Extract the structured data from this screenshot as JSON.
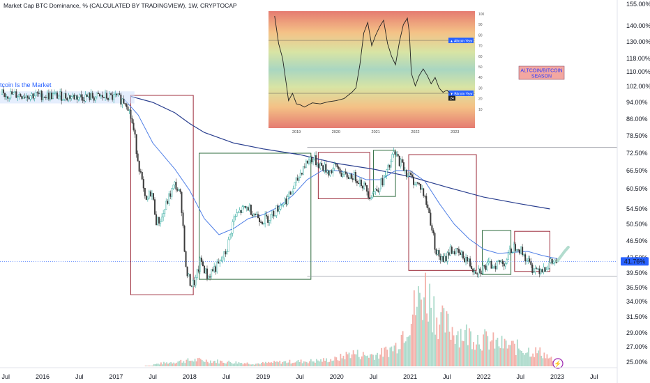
{
  "title": "Market Cap BTC Dominance, % (CALCULATED BY TRADINGVIEW), 1W, CRYPTOCAP",
  "chart_data": {
    "type": "candlestick",
    "series_name": "Market Cap BTC Dominance, %",
    "interval": "1W",
    "price_ticks": [
      155.0,
      140.0,
      130.0,
      118.0,
      110.0,
      102.0,
      94.0,
      86.0,
      78.5,
      72.5,
      66.5,
      60.5,
      54.5,
      50.5,
      46.5,
      42.5,
      39.5,
      36.5,
      34.0,
      31.5,
      29.0,
      27.0,
      25.0
    ],
    "price_tick_labels": [
      "155.00%",
      "140.00%",
      "130.00%",
      "118.00%",
      "110.00%",
      "102.00%",
      "94.00%",
      "86.00%",
      "78.50%",
      "72.50%",
      "66.50%",
      "60.50%",
      "54.50%",
      "50.50%",
      "46.50%",
      "42.50%",
      "39.50%",
      "36.50%",
      "34.00%",
      "31.50%",
      "29.00%",
      "27.00%",
      "25.00%"
    ],
    "time_labels": [
      "Jul",
      "2016",
      "Jul",
      "2017",
      "Jul",
      "2018",
      "Jul",
      "2019",
      "Jul",
      "2020",
      "Jul",
      "2021",
      "Jul",
      "2022",
      "Jul",
      "2023",
      "Jul"
    ],
    "current_value_label": "41.76%",
    "current_value": 41.76,
    "overlay_text": "itcoin Is the Market",
    "season_label": "ALTCOIN/BITCOIN SEASON",
    "horizontal_levels": [
      74.5,
      38.8
    ],
    "inset": {
      "x_labels": [
        "2019",
        "2020",
        "2021",
        "2022",
        "2023"
      ],
      "y_ticks": [
        100,
        90,
        80,
        70,
        60,
        50,
        40,
        30,
        20,
        10
      ],
      "altcoin_label": "Altcoin Year",
      "altcoin_value": 75,
      "bitcoin_label": "Bitcoin Year",
      "bitcoin_value": 25,
      "last_value": 24
    },
    "boxes": [
      {
        "type": "bear",
        "start": 2017.2,
        "end": 2018.05,
        "high": 97.5,
        "low": 35.2
      },
      {
        "type": "bull",
        "start": 2018.13,
        "end": 2019.65,
        "high": 72.5,
        "low": 38.2
      },
      {
        "type": "bear",
        "start": 2019.75,
        "end": 2020.45,
        "high": 72.8,
        "low": 57.5
      },
      {
        "type": "bull",
        "start": 2020.5,
        "end": 2020.8,
        "high": 73.5,
        "low": 58.2
      },
      {
        "type": "bear",
        "start": 2020.98,
        "end": 2021.9,
        "high": 72.0,
        "low": 40.0
      },
      {
        "type": "bull",
        "start": 2021.98,
        "end": 2022.37,
        "high": 49.0,
        "low": 39.2
      },
      {
        "type": "bear",
        "start": 2022.42,
        "end": 2022.9,
        "high": 48.8,
        "low": 39.8
      }
    ],
    "price_path": [
      [
        2015.45,
        98.0
      ],
      [
        2016.0,
        97.5
      ],
      [
        2016.5,
        96.8
      ],
      [
        2017.0,
        96.5
      ],
      [
        2017.15,
        94.0
      ],
      [
        2017.22,
        84.0
      ],
      [
        2017.3,
        70.0
      ],
      [
        2017.4,
        56.0
      ],
      [
        2017.48,
        60.0
      ],
      [
        2017.55,
        51.0
      ],
      [
        2017.62,
        52.0
      ],
      [
        2017.72,
        58.0
      ],
      [
        2017.8,
        62.0
      ],
      [
        2017.88,
        58.0
      ],
      [
        2017.95,
        40.0
      ],
      [
        2018.02,
        37.0
      ],
      [
        2018.08,
        37.8
      ],
      [
        2018.15,
        42.0
      ],
      [
        2018.25,
        38.5
      ],
      [
        2018.3,
        40.0
      ],
      [
        2018.4,
        41.0
      ],
      [
        2018.5,
        44.0
      ],
      [
        2018.6,
        52.0
      ],
      [
        2018.7,
        54.0
      ],
      [
        2018.8,
        55.0
      ],
      [
        2018.9,
        53.0
      ],
      [
        2019.0,
        51.5
      ],
      [
        2019.1,
        52.5
      ],
      [
        2019.25,
        56.0
      ],
      [
        2019.35,
        58.0
      ],
      [
        2019.45,
        62.5
      ],
      [
        2019.55,
        68.0
      ],
      [
        2019.65,
        71.0
      ],
      [
        2019.75,
        69.0
      ],
      [
        2019.9,
        66.0
      ],
      [
        2020.0,
        68.0
      ],
      [
        2020.1,
        64.5
      ],
      [
        2020.2,
        65.0
      ],
      [
        2020.3,
        63.5
      ],
      [
        2020.4,
        60.5
      ],
      [
        2020.45,
        58.5
      ],
      [
        2020.55,
        60.5
      ],
      [
        2020.65,
        64.0
      ],
      [
        2020.72,
        68.0
      ],
      [
        2020.78,
        72.5
      ],
      [
        2020.85,
        70.0
      ],
      [
        2020.95,
        66.0
      ],
      [
        2021.05,
        63.0
      ],
      [
        2021.15,
        61.0
      ],
      [
        2021.25,
        54.0
      ],
      [
        2021.35,
        44.0
      ],
      [
        2021.45,
        41.5
      ],
      [
        2021.55,
        44.5
      ],
      [
        2021.65,
        43.5
      ],
      [
        2021.75,
        42.5
      ],
      [
        2021.85,
        40.5
      ],
      [
        2021.92,
        40.0
      ],
      [
        2022.0,
        40.5
      ],
      [
        2022.1,
        41.0
      ],
      [
        2022.2,
        41.5
      ],
      [
        2022.3,
        41.8
      ],
      [
        2022.38,
        44.5
      ],
      [
        2022.45,
        45.5
      ],
      [
        2022.55,
        43.0
      ],
      [
        2022.65,
        40.5
      ],
      [
        2022.75,
        40.3
      ],
      [
        2022.85,
        40.8
      ],
      [
        2022.93,
        41.5
      ],
      [
        2023.0,
        41.76
      ]
    ],
    "ma_fast": [
      [
        2017.1,
        96.0
      ],
      [
        2017.3,
        88.0
      ],
      [
        2017.5,
        76.0
      ],
      [
        2017.8,
        67.0
      ],
      [
        2018.0,
        60.0
      ],
      [
        2018.2,
        52.0
      ],
      [
        2018.4,
        48.0
      ],
      [
        2018.6,
        49.5
      ],
      [
        2018.8,
        52.0
      ],
      [
        2019.0,
        53.0
      ],
      [
        2019.2,
        55.0
      ],
      [
        2019.4,
        58.5
      ],
      [
        2019.6,
        63.5
      ],
      [
        2019.8,
        66.5
      ],
      [
        2020.0,
        66.5
      ],
      [
        2020.2,
        65.5
      ],
      [
        2020.4,
        63.5
      ],
      [
        2020.6,
        63.5
      ],
      [
        2020.8,
        66.5
      ],
      [
        2021.0,
        66.5
      ],
      [
        2021.2,
        63.0
      ],
      [
        2021.4,
        56.0
      ],
      [
        2021.6,
        50.5
      ],
      [
        2021.8,
        47.0
      ],
      [
        2022.0,
        44.5
      ],
      [
        2022.2,
        43.5
      ],
      [
        2022.4,
        43.8
      ],
      [
        2022.6,
        44.0
      ],
      [
        2022.8,
        43.0
      ],
      [
        2023.0,
        42.3
      ]
    ],
    "ma_slow": [
      [
        2017.2,
        97.0
      ],
      [
        2017.5,
        94.0
      ],
      [
        2017.8,
        89.0
      ],
      [
        2018.0,
        84.0
      ],
      [
        2018.2,
        80.0
      ],
      [
        2018.6,
        76.0
      ],
      [
        2019.0,
        74.0
      ],
      [
        2019.5,
        72.0
      ],
      [
        2020.0,
        69.0
      ],
      [
        2020.5,
        67.0
      ],
      [
        2021.0,
        64.5
      ],
      [
        2021.5,
        61.0
      ],
      [
        2022.0,
        58.0
      ],
      [
        2022.5,
        56.0
      ],
      [
        2022.9,
        54.5
      ]
    ],
    "volume": [
      [
        2017.5,
        0.02
      ],
      [
        2017.9,
        0.06
      ],
      [
        2018.1,
        0.07
      ],
      [
        2018.5,
        0.05
      ],
      [
        2018.9,
        0.03
      ],
      [
        2019.3,
        0.05
      ],
      [
        2019.7,
        0.06
      ],
      [
        2020.0,
        0.08
      ],
      [
        2020.2,
        0.15
      ],
      [
        2020.4,
        0.12
      ],
      [
        2020.6,
        0.14
      ],
      [
        2020.8,
        0.22
      ],
      [
        2021.0,
        0.55
      ],
      [
        2021.1,
        0.7
      ],
      [
        2021.2,
        0.85
      ],
      [
        2021.3,
        0.7
      ],
      [
        2021.4,
        0.5
      ],
      [
        2021.6,
        0.4
      ],
      [
        2021.8,
        0.35
      ],
      [
        2022.0,
        0.3
      ],
      [
        2022.2,
        0.25
      ],
      [
        2022.4,
        0.22
      ],
      [
        2022.6,
        0.18
      ],
      [
        2022.8,
        0.15
      ],
      [
        2022.95,
        0.06
      ]
    ],
    "inset_series": [
      [
        2018.45,
        98
      ],
      [
        2018.55,
        72
      ],
      [
        2018.65,
        58
      ],
      [
        2018.75,
        32
      ],
      [
        2018.8,
        18
      ],
      [
        2018.9,
        25
      ],
      [
        2019.0,
        15
      ],
      [
        2019.1,
        14
      ],
      [
        2019.2,
        12
      ],
      [
        2019.4,
        16
      ],
      [
        2019.6,
        15
      ],
      [
        2019.8,
        17
      ],
      [
        2020.0,
        18
      ],
      [
        2020.2,
        20
      ],
      [
        2020.4,
        26
      ],
      [
        2020.5,
        30
      ],
      [
        2020.6,
        52
      ],
      [
        2020.7,
        82
      ],
      [
        2020.8,
        92
      ],
      [
        2020.9,
        70
      ],
      [
        2021.0,
        80
      ],
      [
        2021.1,
        88
      ],
      [
        2021.2,
        94
      ],
      [
        2021.3,
        72
      ],
      [
        2021.4,
        60
      ],
      [
        2021.5,
        52
      ],
      [
        2021.6,
        74
      ],
      [
        2021.7,
        90
      ],
      [
        2021.8,
        96
      ],
      [
        2021.85,
        82
      ],
      [
        2021.9,
        44
      ],
      [
        2022.0,
        32
      ],
      [
        2022.1,
        42
      ],
      [
        2022.2,
        48
      ],
      [
        2022.3,
        42
      ],
      [
        2022.4,
        34
      ],
      [
        2022.5,
        40
      ],
      [
        2022.6,
        30
      ],
      [
        2022.7,
        26
      ],
      [
        2022.8,
        28
      ],
      [
        2022.9,
        24
      ]
    ]
  }
}
